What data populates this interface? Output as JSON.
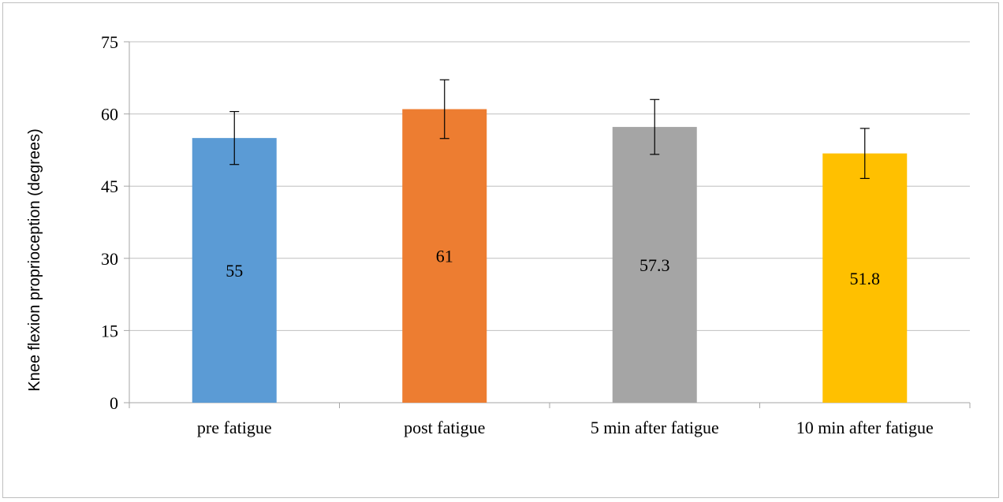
{
  "chart_data": {
    "type": "bar",
    "title": "",
    "xlabel": "",
    "ylabel": "Knee flexion proprioception (degrees)",
    "ylim": [
      0,
      75
    ],
    "yticks": [
      0,
      15,
      30,
      45,
      60,
      75
    ],
    "grid": true,
    "legend": "none",
    "categories": [
      "pre fatigue",
      "post fatigue",
      "5 min after fatigue",
      "10 min after fatigue"
    ],
    "values": [
      55,
      61,
      57.3,
      51.8
    ],
    "data_labels": [
      "55",
      "61",
      "57.3",
      "51.8"
    ],
    "error_bars": [
      {
        "low": 49.5,
        "high": 60.5
      },
      {
        "low": 54.9,
        "high": 67.1
      },
      {
        "low": 51.6,
        "high": 63.0
      },
      {
        "low": 46.6,
        "high": 57.0
      }
    ],
    "colors": [
      "#5b9bd5",
      "#ed7d31",
      "#a5a5a5",
      "#ffc000"
    ]
  }
}
